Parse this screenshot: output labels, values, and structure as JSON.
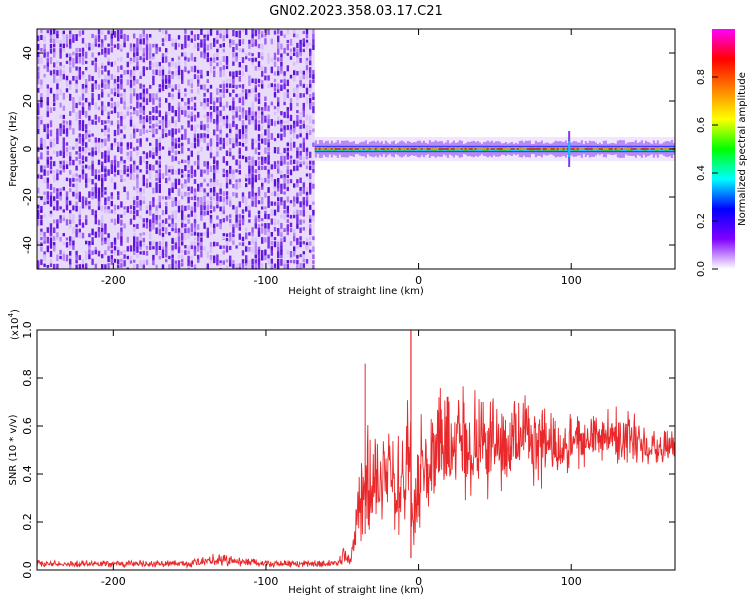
{
  "title": "GN02.2023.358.03.17.C21",
  "chart_data": [
    {
      "type": "heatmap",
      "title": "GN02.2023.358.03.17.C21",
      "xlabel": "Height of straight line (km)",
      "ylabel": "Frequency (Hz)",
      "xlim": [
        -250,
        168
      ],
      "ylim": [
        -50,
        50
      ],
      "xticks": [
        "-200",
        "-100",
        "0",
        "100"
      ],
      "yticks": [
        "-40",
        "-20",
        "0",
        "20",
        "40"
      ],
      "grid": false,
      "description_of_content": [],
      "noise_region_x": [
        -250,
        -68
      ],
      "signal_line_freq_hz": 0,
      "signal_start_x": -68,
      "signal_end_x": 168,
      "colorbar": {
        "label": "Normalized spectral amplitude",
        "range": [
          0,
          1
        ],
        "ticks": [
          "0.0",
          "0.2",
          "0.4",
          "0.6",
          "0.8"
        ],
        "colormap": [
          "#ffffff",
          "#8000ff",
          "#0000ff",
          "#00ffff",
          "#00ff00",
          "#ffff00",
          "#ff8000",
          "#ff0000",
          "#ff00ff"
        ]
      }
    },
    {
      "type": "line",
      "xlabel": "Height of straight line (km)",
      "ylabel": "SNR (10 * v/v)",
      "yscale_label": "(x10",
      "yscale_exp": "4",
      "xlim": [
        -250,
        168
      ],
      "ylim": [
        0,
        1.0
      ],
      "xticks": [
        "-200",
        "-100",
        "0",
        "100"
      ],
      "yticks": [
        "0.0",
        "0.2",
        "0.4",
        "0.6",
        "0.8",
        "1.0"
      ],
      "grid": false,
      "color": "#e8282a",
      "envelope_x": [
        -250,
        -150,
        -135,
        -100,
        -60,
        -52,
        -48,
        -45,
        -42,
        -38,
        -35,
        -33,
        -30,
        -25,
        -20,
        -15,
        -10,
        -5,
        -3,
        0,
        5,
        10,
        15,
        20,
        25,
        30,
        35,
        40,
        45,
        50,
        55,
        60,
        65,
        70,
        75,
        80,
        85,
        90,
        95,
        100,
        105,
        110,
        115,
        120,
        125,
        130,
        135,
        140,
        145,
        150,
        155,
        160,
        168
      ],
      "envelope_high": [
        0.04,
        0.04,
        0.07,
        0.04,
        0.04,
        0.05,
        0.12,
        0.08,
        0.2,
        0.45,
        0.86,
        0.6,
        0.55,
        0.6,
        0.65,
        0.62,
        0.6,
        1.0,
        0.7,
        0.68,
        0.65,
        0.68,
        0.8,
        0.75,
        0.82,
        0.78,
        0.72,
        0.8,
        0.7,
        0.75,
        0.68,
        0.72,
        0.7,
        0.74,
        0.7,
        0.76,
        0.68,
        0.62,
        0.6,
        0.66,
        0.64,
        0.62,
        0.66,
        0.64,
        0.68,
        0.7,
        0.66,
        0.68,
        0.62,
        0.62,
        0.6,
        0.6,
        0.58
      ],
      "envelope_low": [
        0.01,
        0.01,
        0.02,
        0.01,
        0.01,
        0.01,
        0.02,
        0.01,
        0.05,
        0.1,
        0.15,
        0.12,
        0.2,
        0.18,
        0.25,
        0.1,
        0.18,
        0.2,
        0.05,
        0.1,
        0.15,
        0.2,
        0.28,
        0.25,
        0.3,
        0.22,
        0.3,
        0.35,
        0.28,
        0.3,
        0.32,
        0.38,
        0.35,
        0.4,
        0.35,
        0.3,
        0.38,
        0.4,
        0.42,
        0.38,
        0.4,
        0.42,
        0.45,
        0.44,
        0.46,
        0.42,
        0.45,
        0.44,
        0.43,
        0.42,
        0.44,
        0.42,
        0.44
      ],
      "envelope_mean": [
        0.025,
        0.025,
        0.04,
        0.025,
        0.025,
        0.03,
        0.06,
        0.04,
        0.12,
        0.28,
        0.4,
        0.3,
        0.35,
        0.38,
        0.42,
        0.35,
        0.38,
        0.45,
        0.25,
        0.38,
        0.4,
        0.42,
        0.5,
        0.48,
        0.55,
        0.5,
        0.5,
        0.55,
        0.5,
        0.52,
        0.5,
        0.54,
        0.52,
        0.56,
        0.52,
        0.54,
        0.52,
        0.5,
        0.5,
        0.52,
        0.52,
        0.52,
        0.55,
        0.54,
        0.56,
        0.56,
        0.55,
        0.56,
        0.53,
        0.52,
        0.52,
        0.51,
        0.5
      ]
    }
  ]
}
